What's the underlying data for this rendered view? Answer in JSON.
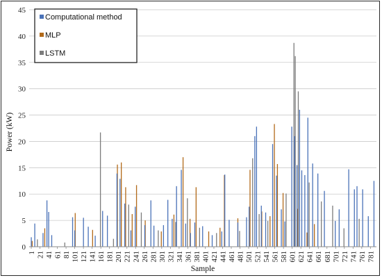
{
  "chart_data": {
    "type": "bar",
    "title": "",
    "xlabel": "Sample",
    "ylabel": "Power (kW)",
    "ylim": [
      0,
      45
    ],
    "yticks": [
      "0",
      "5",
      "10",
      "15",
      "20",
      "25",
      "30",
      "35",
      "40",
      "45"
    ],
    "xticks": [
      "1",
      "21",
      "41",
      "61",
      "81",
      "101",
      "121",
      "141",
      "161",
      "181",
      "201",
      "221",
      "241",
      "261",
      "281",
      "301",
      "321",
      "341",
      "361",
      "381",
      "401",
      "421",
      "441",
      "461",
      "481",
      "501",
      "521",
      "541",
      "561",
      "581",
      "601",
      "621",
      "641",
      "661",
      "681",
      "701",
      "721",
      "741",
      "761",
      "781"
    ],
    "x_range": [
      1,
      790
    ],
    "grid": "horizontal",
    "legend_position": "top-left",
    "series": [
      {
        "name": "Computational method",
        "color": "#4a72b8",
        "points": [
          [
            1,
            1.8
          ],
          [
            9,
            4.4
          ],
          [
            28,
            2.6
          ],
          [
            37,
            8.8
          ],
          [
            41,
            6.6
          ],
          [
            48,
            2.2
          ],
          [
            96,
            5.6
          ],
          [
            101,
            3.1
          ],
          [
            121,
            5.5
          ],
          [
            132,
            3.8
          ],
          [
            148,
            2.1
          ],
          [
            165,
            6.8
          ],
          [
            176,
            5.9
          ],
          [
            198,
            13.9
          ],
          [
            205,
            12.9
          ],
          [
            216,
            8.2
          ],
          [
            230,
            3.1
          ],
          [
            240,
            7.6
          ],
          [
            262,
            4.1
          ],
          [
            276,
            8.8
          ],
          [
            283,
            4.0
          ],
          [
            305,
            4.1
          ],
          [
            315,
            8.9
          ],
          [
            325,
            5.3
          ],
          [
            335,
            11.5
          ],
          [
            346,
            14.6
          ],
          [
            356,
            4.4
          ],
          [
            367,
            2.6
          ],
          [
            377,
            4.6
          ],
          [
            395,
            3.9
          ],
          [
            417,
            2.2
          ],
          [
            439,
            2.9
          ],
          [
            446,
            13.7
          ],
          [
            456,
            5.1
          ],
          [
            476,
            4.6
          ],
          [
            496,
            5.6
          ],
          [
            502,
            7.6
          ],
          [
            515,
            21.0
          ],
          [
            519,
            22.8
          ],
          [
            530,
            7.8
          ],
          [
            540,
            6.5
          ],
          [
            556,
            19.5
          ],
          [
            565,
            13.5
          ],
          [
            576,
            7.1
          ],
          [
            584,
            4.8
          ],
          [
            600,
            22.8
          ],
          [
            606,
            21.0
          ],
          [
            612,
            15.5
          ],
          [
            618,
            26.0
          ],
          [
            623,
            14.5
          ],
          [
            630,
            13.6
          ],
          [
            637,
            24.5
          ],
          [
            648,
            15.8
          ],
          [
            660,
            13.9
          ],
          [
            675,
            10.6
          ],
          [
            700,
            4.9
          ],
          [
            709,
            7.1
          ],
          [
            731,
            14.7
          ],
          [
            744,
            10.9
          ],
          [
            750,
            11.5
          ],
          [
            763,
            10.9
          ],
          [
            776,
            5.8
          ],
          [
            789,
            12.5
          ]
        ]
      },
      {
        "name": "MLP",
        "color": "#b26a1a",
        "points": [
          [
            3,
            1.1
          ],
          [
            32,
            3.5
          ],
          [
            102,
            6.4
          ],
          [
            142,
            3.2
          ],
          [
            199,
            15.6
          ],
          [
            208,
            16.0
          ],
          [
            218,
            11.3
          ],
          [
            233,
            6.2
          ],
          [
            243,
            11.7
          ],
          [
            263,
            5.0
          ],
          [
            300,
            2.9
          ],
          [
            329,
            6.1
          ],
          [
            350,
            17.0
          ],
          [
            366,
            5.3
          ],
          [
            380,
            11.3
          ],
          [
            409,
            2.9
          ],
          [
            435,
            3.6
          ],
          [
            445,
            13.6
          ],
          [
            476,
            5.4
          ],
          [
            504,
            14.6
          ],
          [
            531,
            6.7
          ],
          [
            550,
            5.8
          ],
          [
            560,
            23.3
          ],
          [
            567,
            15.7
          ],
          [
            580,
            10.2
          ],
          [
            613,
            7.2
          ],
          [
            635,
            2.7
          ],
          [
            652,
            4.3
          ]
        ]
      },
      {
        "name": "LSTM",
        "color": "#7c7c7c",
        "points": [
          [
            15,
            1.4
          ],
          [
            78,
            0.8
          ],
          [
            160,
            21.7
          ],
          [
            190,
            1.5
          ],
          [
            225,
            8.0
          ],
          [
            254,
            6.5
          ],
          [
            293,
            3.1
          ],
          [
            333,
            4.7
          ],
          [
            360,
            9.2
          ],
          [
            388,
            3.6
          ],
          [
            427,
            2.6
          ],
          [
            480,
            3.0
          ],
          [
            510,
            16.8
          ],
          [
            525,
            6.2
          ],
          [
            545,
            4.9
          ],
          [
            587,
            10.1
          ],
          [
            605,
            38.7
          ],
          [
            608,
            36.2
          ],
          [
            615,
            29.5
          ],
          [
            640,
            12.2
          ],
          [
            668,
            8.6
          ],
          [
            694,
            7.8
          ],
          [
            720,
            3.5
          ],
          [
            755,
            5.3
          ]
        ]
      }
    ]
  }
}
